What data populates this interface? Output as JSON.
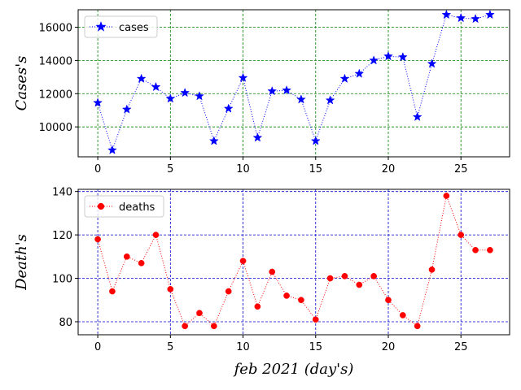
{
  "chart_data": [
    {
      "type": "line",
      "xlabel": "",
      "ylabel": "Cases's",
      "xlim": [
        -1.35,
        28.35
      ],
      "ylim": [
        8200,
        17050
      ],
      "xticks": [
        0,
        5,
        10,
        15,
        20,
        25
      ],
      "yticks": [
        10000,
        12000,
        14000,
        16000
      ],
      "grid": true,
      "grid_color": "#008000",
      "legend_position": "upper-left",
      "series": [
        {
          "name": "cases",
          "color": "#0000ff",
          "marker": "star",
          "linestyle": "dotted",
          "x": [
            0,
            1,
            2,
            3,
            4,
            5,
            6,
            7,
            8,
            9,
            10,
            11,
            12,
            13,
            14,
            15,
            16,
            17,
            18,
            19,
            20,
            21,
            22,
            23,
            24,
            25,
            26,
            27
          ],
          "y": [
            11450,
            8600,
            11050,
            12900,
            12400,
            11700,
            12050,
            11850,
            9150,
            11100,
            12950,
            9350,
            12150,
            12200,
            11650,
            9150,
            11600,
            12900,
            13200,
            14000,
            14250,
            14200,
            10600,
            13800,
            16750,
            16550,
            16500,
            16750
          ]
        }
      ]
    },
    {
      "type": "line",
      "xlabel": "feb 2021 (day's)",
      "ylabel": "Death's",
      "xlim": [
        -1.35,
        28.35
      ],
      "ylim": [
        74,
        141
      ],
      "xticks": [
        0,
        5,
        10,
        15,
        20,
        25
      ],
      "yticks": [
        80,
        100,
        120,
        140
      ],
      "grid": true,
      "grid_color": "#0000cd",
      "legend_position": "upper-left",
      "series": [
        {
          "name": "deaths",
          "color": "#ff0000",
          "marker": "circle",
          "linestyle": "dotted",
          "x": [
            0,
            1,
            2,
            3,
            4,
            5,
            6,
            7,
            8,
            9,
            10,
            11,
            12,
            13,
            14,
            15,
            16,
            17,
            18,
            19,
            20,
            21,
            22,
            23,
            24,
            25,
            26,
            27
          ],
          "y": [
            118,
            94,
            110,
            107,
            120,
            95,
            78,
            84,
            78,
            94,
            108,
            87,
            103,
            92,
            90,
            81,
            100,
            101,
            97,
            101,
            90,
            83,
            78,
            104,
            138,
            120,
            113,
            113
          ]
        }
      ]
    }
  ]
}
